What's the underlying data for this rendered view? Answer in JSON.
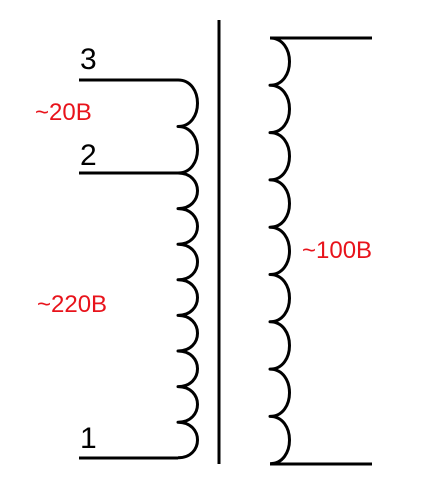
{
  "colors": {
    "line": "#000000",
    "voltage_text": "#e8131b",
    "background": "#ffffff"
  },
  "terminals": {
    "t3": "3",
    "t2": "2",
    "t1": "1"
  },
  "voltages": {
    "tap_3_2": "~20B",
    "tap_2_1": "~220B",
    "secondary": "~100B"
  }
}
